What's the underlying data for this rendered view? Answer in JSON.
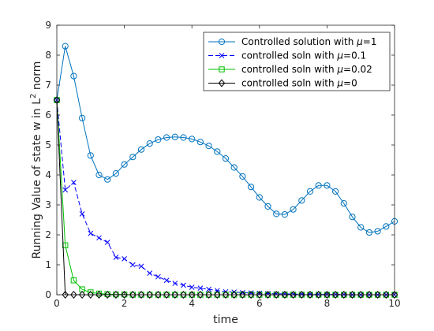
{
  "chart_data": {
    "type": "line",
    "xlabel": "time",
    "ylabel": "Running Value of state w in L² norm",
    "ylabel_parts": [
      "Running Value of state w in L",
      "2",
      " norm"
    ],
    "xlim": [
      0,
      10
    ],
    "ylim": [
      0,
      9
    ],
    "x_ticks": [
      "0",
      "2",
      "4",
      "6",
      "8",
      "10"
    ],
    "y_ticks": [
      "0",
      "1",
      "2",
      "3",
      "4",
      "5",
      "6",
      "7",
      "8",
      "9"
    ],
    "grid": false,
    "legend_position": "top-right",
    "series": [
      {
        "name": "Controlled solution with μ=1",
        "legend_parts": [
          "Controlled solution with ",
          "μ",
          "=1"
        ],
        "color": "#0072BD",
        "marker": "circle",
        "dash": "solid",
        "x": [
          0,
          0.25,
          0.5,
          0.75,
          1.0,
          1.25,
          1.5,
          1.75,
          2.0,
          2.25,
          2.5,
          2.75,
          3.0,
          3.25,
          3.5,
          3.75,
          4.0,
          4.25,
          4.5,
          4.75,
          5.0,
          5.25,
          5.5,
          5.75,
          6.0,
          6.25,
          6.5,
          6.75,
          7.0,
          7.25,
          7.5,
          7.75,
          8.0,
          8.25,
          8.5,
          8.75,
          9.0,
          9.25,
          9.5,
          9.75,
          10.0
        ],
        "y": [
          6.5,
          8.3,
          7.3,
          5.9,
          4.65,
          4.0,
          3.85,
          4.05,
          4.35,
          4.6,
          4.85,
          5.05,
          5.18,
          5.25,
          5.27,
          5.25,
          5.2,
          5.1,
          4.97,
          4.78,
          4.55,
          4.25,
          3.95,
          3.6,
          3.25,
          2.95,
          2.7,
          2.68,
          2.85,
          3.15,
          3.45,
          3.65,
          3.65,
          3.45,
          3.05,
          2.6,
          2.25,
          2.08,
          2.12,
          2.28,
          2.45
        ]
      },
      {
        "name": "controlled soln with μ=0.1",
        "legend_parts": [
          "controlled soln with ",
          "μ",
          "=0.1"
        ],
        "color": "#0000FF",
        "marker": "x",
        "dash": "dashed",
        "x": [
          0,
          0.25,
          0.5,
          0.75,
          1.0,
          1.25,
          1.5,
          1.75,
          2.0,
          2.25,
          2.5,
          2.75,
          3.0,
          3.25,
          3.5,
          3.75,
          4.0,
          4.25,
          4.5,
          4.75,
          5.0,
          5.25,
          5.5,
          5.75,
          6.0,
          6.25,
          6.5,
          6.75,
          7.0,
          7.25,
          7.5,
          7.75,
          8.0,
          8.25,
          8.5,
          8.75,
          9.0,
          9.25,
          9.5,
          9.75,
          10.0
        ],
        "y": [
          6.5,
          3.5,
          3.75,
          2.7,
          2.05,
          1.9,
          1.75,
          1.25,
          1.2,
          1.0,
          0.95,
          0.72,
          0.6,
          0.48,
          0.38,
          0.32,
          0.25,
          0.22,
          0.18,
          0.14,
          0.1,
          0.09,
          0.07,
          0.06,
          0.05,
          0.04,
          0.03,
          0.03,
          0.02,
          0.02,
          0.02,
          0.01,
          0.01,
          0.01,
          0.01,
          0.0,
          0.0,
          0.0,
          0.0,
          0.0,
          0.0
        ]
      },
      {
        "name": "controlled soln with μ=0.02",
        "legend_parts": [
          "controlled soln with ",
          "μ",
          "=0.02"
        ],
        "color": "#00C000",
        "marker": "square",
        "dash": "solid",
        "x": [
          0,
          0.25,
          0.5,
          0.75,
          1.0,
          1.25,
          1.5,
          1.75,
          2.0,
          2.25,
          2.5,
          2.75,
          3.0,
          3.25,
          3.5,
          3.75,
          4.0,
          4.25,
          4.5,
          4.75,
          5.0,
          5.25,
          5.5,
          5.75,
          6.0,
          6.25,
          6.5,
          6.75,
          7.0,
          7.25,
          7.5,
          7.75,
          8.0,
          8.25,
          8.5,
          8.75,
          9.0,
          9.25,
          9.5,
          9.75,
          10.0
        ],
        "y": [
          6.5,
          1.65,
          0.48,
          0.18,
          0.08,
          0.04,
          0.02,
          0.01,
          0.01,
          0.0,
          0.0,
          0.0,
          0.0,
          0.0,
          0.0,
          0.0,
          0.0,
          0.0,
          0.0,
          0.0,
          0.0,
          0.0,
          0.0,
          0.0,
          0.0,
          0.0,
          0.0,
          0.0,
          0.0,
          0.0,
          0.0,
          0.0,
          0.0,
          0.0,
          0.0,
          0.0,
          0.0,
          0.0,
          0.0,
          0.0,
          0.0
        ]
      },
      {
        "name": "controlled soln with μ=0",
        "legend_parts": [
          "controlled soln with ",
          "μ",
          "=0"
        ],
        "color": "#000000",
        "marker": "diamond",
        "dash": "solid",
        "x": [
          0,
          0.25,
          0.5,
          0.75,
          1.0,
          1.25,
          1.5,
          1.75,
          2.0,
          2.25,
          2.5,
          2.75,
          3.0,
          3.25,
          3.5,
          3.75,
          4.0,
          4.25,
          4.5,
          4.75,
          5.0,
          5.25,
          5.5,
          5.75,
          6.0,
          6.25,
          6.5,
          6.75,
          7.0,
          7.25,
          7.5,
          7.75,
          8.0,
          8.25,
          8.5,
          8.75,
          9.0,
          9.25,
          9.5,
          9.75,
          10.0
        ],
        "y": [
          6.5,
          0.0,
          0.0,
          0.0,
          0.0,
          0.0,
          0.0,
          0.0,
          0.0,
          0.0,
          0.0,
          0.0,
          0.0,
          0.0,
          0.0,
          0.0,
          0.0,
          0.0,
          0.0,
          0.0,
          0.0,
          0.0,
          0.0,
          0.0,
          0.0,
          0.0,
          0.0,
          0.0,
          0.0,
          0.0,
          0.0,
          0.0,
          0.0,
          0.0,
          0.0,
          0.0,
          0.0,
          0.0,
          0.0,
          0.0,
          0.0
        ]
      }
    ]
  }
}
